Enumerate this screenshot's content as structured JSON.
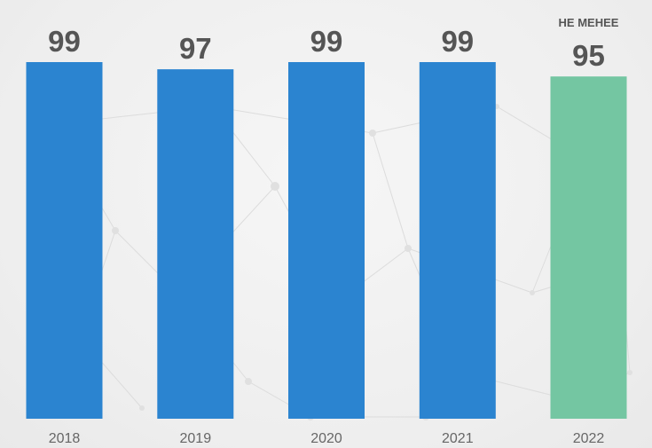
{
  "chart_data": {
    "type": "bar",
    "categories": [
      "2018",
      "2019",
      "2020",
      "2021",
      "2022"
    ],
    "values": [
      99,
      97,
      99,
      99,
      95
    ],
    "value_labels": [
      "99",
      "97",
      "99",
      "99",
      "95"
    ],
    "value_prefixes": [
      "",
      "",
      "",
      "",
      "НЕ МЕНЕЕ"
    ],
    "colors": [
      "#2b84d0",
      "#2b84d0",
      "#2b84d0",
      "#2b84d0",
      "#74c6a2"
    ],
    "title": "",
    "xlabel": "",
    "ylabel": "",
    "grid": false,
    "legend": "none"
  }
}
